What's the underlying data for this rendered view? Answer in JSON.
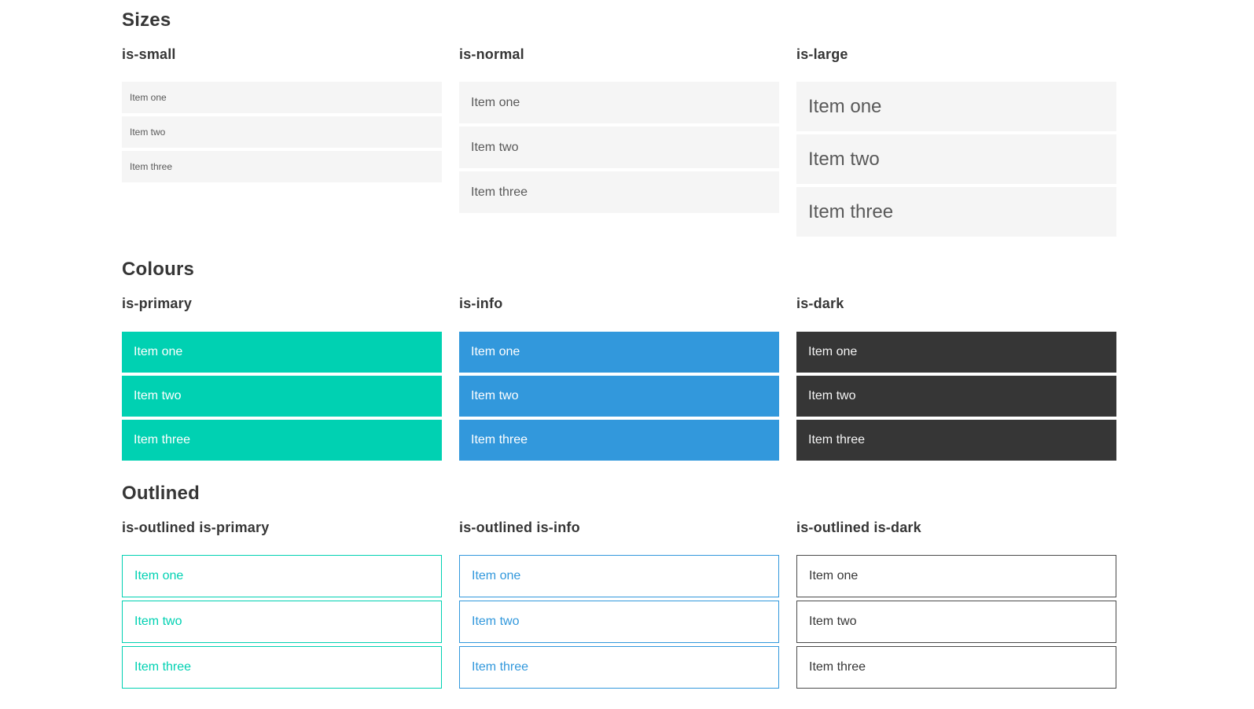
{
  "colors": {
    "primary": "#00d1b2",
    "info": "#3298dc",
    "dark": "#363636",
    "light_item_background": "#f5f5f5",
    "heading_text": "#363636",
    "light_item_text": "#595959",
    "page_background": "#ffffff"
  },
  "sections": [
    {
      "title": "Sizes",
      "groups": [
        {
          "heading": "is-small",
          "variant": "size-small",
          "items": [
            "Item one",
            "Item two",
            "Item three"
          ]
        },
        {
          "heading": "is-normal",
          "variant": "size-normal",
          "items": [
            "Item one",
            "Item two",
            "Item three"
          ]
        },
        {
          "heading": "is-large",
          "variant": "size-large",
          "items": [
            "Item one",
            "Item two",
            "Item three"
          ]
        }
      ]
    },
    {
      "title": "Colours",
      "groups": [
        {
          "heading": "is-primary",
          "variant": "color-primary",
          "items": [
            "Item one",
            "Item two",
            "Item three"
          ]
        },
        {
          "heading": "is-info",
          "variant": "color-info",
          "items": [
            "Item one",
            "Item two",
            "Item three"
          ]
        },
        {
          "heading": "is-dark",
          "variant": "color-dark",
          "items": [
            "Item one",
            "Item two",
            "Item three"
          ]
        }
      ]
    },
    {
      "title": "Outlined",
      "groups": [
        {
          "heading": "is-outlined is-primary",
          "variant": "outlined-primary",
          "items": [
            "Item one",
            "Item two",
            "Item three"
          ]
        },
        {
          "heading": "is-outlined is-info",
          "variant": "outlined-info",
          "items": [
            "Item one",
            "Item two",
            "Item three"
          ]
        },
        {
          "heading": "is-outlined is-dark",
          "variant": "outlined-dark",
          "items": [
            "Item one",
            "Item two",
            "Item three"
          ]
        }
      ]
    }
  ]
}
